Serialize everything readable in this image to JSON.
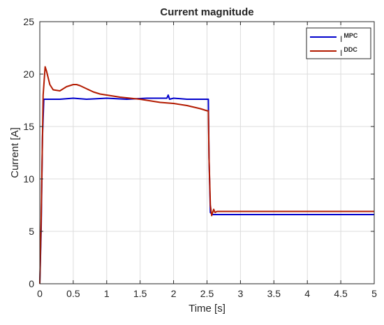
{
  "chart_data": {
    "type": "line",
    "title": "Current magnitude",
    "xlabel": "Time [s]",
    "ylabel": "Current [A]",
    "xlim": [
      0,
      5
    ],
    "ylim": [
      0,
      25
    ],
    "xticks": [
      0,
      0.5,
      1,
      1.5,
      2,
      2.5,
      3,
      3.5,
      4,
      4.5,
      5
    ],
    "xtick_labels": [
      "0",
      "0.5",
      "1",
      "1.5",
      "2",
      "2.5",
      "3",
      "3.5",
      "4",
      "4.5",
      "5"
    ],
    "yticks": [
      0,
      5,
      10,
      15,
      20,
      25
    ],
    "ytick_labels": [
      "0",
      "5",
      "10",
      "15",
      "20",
      "25"
    ],
    "grid": true,
    "legend_position": "top-right",
    "series": [
      {
        "name": "I",
        "name_superscript": "MPC",
        "color": "#0000cc",
        "x": [
          0,
          0.02,
          0.04,
          0.06,
          0.1,
          0.3,
          0.5,
          0.7,
          1.0,
          1.3,
          1.6,
          1.9,
          1.92,
          1.94,
          2.0,
          2.2,
          2.4,
          2.52,
          2.53,
          2.55,
          2.58,
          2.7,
          3.0,
          3.5,
          4.0,
          4.5,
          5.0
        ],
        "y": [
          0,
          5,
          14,
          17.6,
          17.6,
          17.6,
          17.7,
          17.6,
          17.7,
          17.6,
          17.7,
          17.7,
          18.0,
          17.6,
          17.7,
          17.6,
          17.6,
          17.6,
          12,
          6.8,
          6.6,
          6.6,
          6.6,
          6.6,
          6.6,
          6.6,
          6.6
        ]
      },
      {
        "name": "I",
        "name_superscript": "DDC",
        "color": "#b31a00",
        "x": [
          0,
          0.02,
          0.05,
          0.08,
          0.1,
          0.15,
          0.2,
          0.3,
          0.4,
          0.5,
          0.55,
          0.6,
          0.7,
          0.8,
          0.9,
          1.0,
          1.2,
          1.5,
          1.8,
          2.0,
          2.2,
          2.4,
          2.5,
          2.52,
          2.53,
          2.55,
          2.57,
          2.6,
          2.62,
          2.65,
          2.7,
          3.0,
          3.5,
          4.0,
          4.5,
          5.0
        ],
        "y": [
          0,
          6,
          18,
          20.7,
          20.3,
          19.0,
          18.5,
          18.4,
          18.8,
          19.0,
          19.0,
          18.9,
          18.6,
          18.3,
          18.1,
          18.0,
          17.8,
          17.6,
          17.3,
          17.2,
          17.0,
          16.7,
          16.5,
          16.5,
          12,
          7.5,
          6.5,
          7.1,
          6.8,
          6.9,
          6.9,
          6.9,
          6.9,
          6.9,
          6.9,
          6.9
        ]
      }
    ]
  }
}
